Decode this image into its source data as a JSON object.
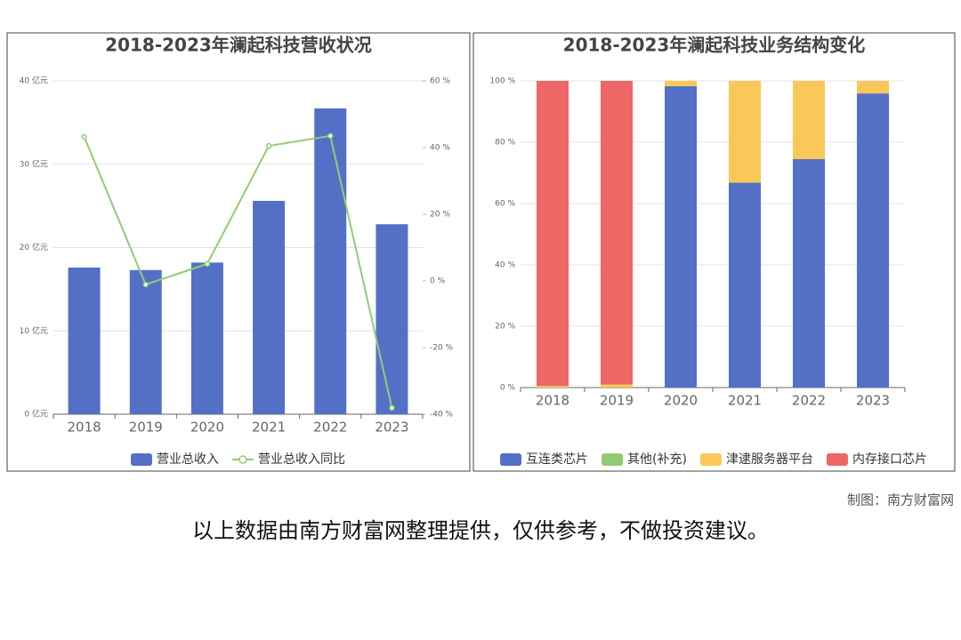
{
  "chart_data": [
    {
      "type": "bar",
      "title": "2018-2023年澜起科技营收状况",
      "categories": [
        "2018",
        "2019",
        "2020",
        "2021",
        "2022",
        "2023"
      ],
      "series": [
        {
          "name": "营业总收入",
          "color": "#5470c6",
          "type": "bar",
          "values": [
            17.6,
            17.3,
            18.2,
            25.6,
            36.7,
            22.8
          ]
        },
        {
          "name": "营业总收入同比",
          "color": "#91cc75",
          "type": "line",
          "axis": "y2",
          "values": [
            43.2,
            -1.1,
            5.1,
            40.5,
            43.5,
            -38.1
          ]
        }
      ],
      "ylim": [
        0,
        40
      ],
      "yticks": [
        {
          "value": 0,
          "label": "0 亿元"
        },
        {
          "value": 10,
          "label": "10 亿元"
        },
        {
          "value": 20,
          "label": "20 亿元"
        },
        {
          "value": 30,
          "label": "30 亿元"
        },
        {
          "value": 40,
          "label": "40 亿元"
        }
      ],
      "y2lim": [
        -40,
        60
      ],
      "y2ticks": [
        {
          "value": -40,
          "label": "-40 %"
        },
        {
          "value": -20,
          "label": "-20 %"
        },
        {
          "value": 0,
          "label": "0 %"
        },
        {
          "value": 20,
          "label": "20 %"
        },
        {
          "value": 40,
          "label": "40 %"
        },
        {
          "value": 60,
          "label": "60 %"
        }
      ],
      "grid": true,
      "legend": "bottom"
    },
    {
      "type": "stacked_bar",
      "title": "2018-2023年澜起科技业务结构变化",
      "categories": [
        "2018",
        "2019",
        "2020",
        "2021",
        "2022",
        "2023"
      ],
      "series": [
        {
          "name": "互连类芯片",
          "color": "#5470c6",
          "values": [
            0,
            0,
            98.3,
            66.8,
            74.5,
            95.9
          ]
        },
        {
          "name": "其他(补充)",
          "color": "#91cc75",
          "values": [
            0,
            0,
            0,
            0,
            0,
            0
          ]
        },
        {
          "name": "津逮服务器平台",
          "color": "#fac858",
          "values": [
            0.5,
            1,
            1.7,
            33.2,
            25.5,
            4.1
          ]
        },
        {
          "name": "内存接口芯片",
          "color": "#ee6666",
          "values": [
            99.5,
            99,
            0,
            0,
            0,
            0
          ]
        }
      ],
      "ylim": [
        0,
        100
      ],
      "yticks": [
        {
          "value": 0,
          "label": "0 %"
        },
        {
          "value": 20,
          "label": "20 %"
        },
        {
          "value": 40,
          "label": "40 %"
        },
        {
          "value": 60,
          "label": "60 %"
        },
        {
          "value": 80,
          "label": "80 %"
        },
        {
          "value": 100,
          "label": "100 %"
        }
      ],
      "grid": true,
      "legend": "bottom"
    }
  ],
  "credit": "制图：南方财富网",
  "disclaimer": "以上数据由南方财富网整理提供，仅供参考，不做投资建议。"
}
